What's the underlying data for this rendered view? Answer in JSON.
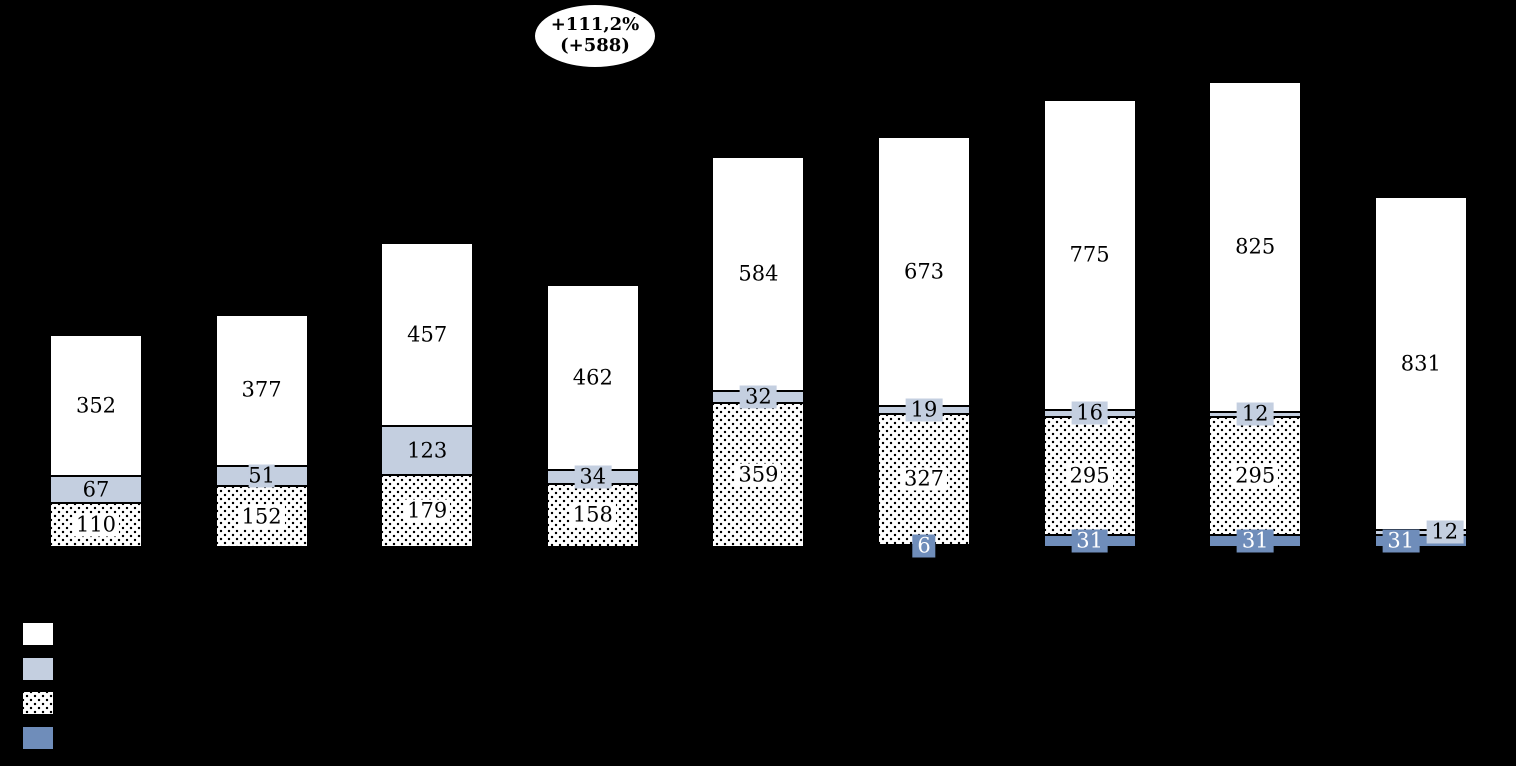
{
  "background_color": "#000000",
  "annotation": {
    "percent": "+111,2%",
    "absolute": "(+588)"
  },
  "chart_data": {
    "type": "bar",
    "stacked": true,
    "bar_count": 9,
    "x_tick_labels_visible": false,
    "axis_visible": false,
    "grid": false,
    "series": [
      {
        "key": "white",
        "style": "white",
        "values": [
          352,
          377,
          457,
          462,
          584,
          673,
          775,
          825,
          831
        ]
      },
      {
        "key": "light-blue",
        "style": "light",
        "values": [
          67,
          51,
          123,
          34,
          32,
          19,
          16,
          12,
          12
        ]
      },
      {
        "key": "dotted",
        "style": "dotted",
        "values": [
          110,
          152,
          179,
          158,
          359,
          327,
          295,
          295,
          0
        ]
      },
      {
        "key": "dark-blue",
        "style": "dark",
        "values": [
          0,
          0,
          0,
          0,
          0,
          6,
          31,
          31,
          31
        ]
      }
    ],
    "stack_order_bottom_to_top": [
      "dark-blue",
      "dotted",
      "light-blue",
      "white"
    ],
    "totals": [
      529,
      580,
      759,
      654,
      975,
      1025,
      1117,
      1163,
      874
    ],
    "colors": {
      "white": "#ffffff",
      "light": "#c4cfe0",
      "dark": "#6f8dba",
      "dot": "#000000",
      "outline": "#000000",
      "annotation_fill": "#ffffff"
    },
    "legend": {
      "position": "bottom-left",
      "labels_visible": false,
      "swatch_order": [
        "white",
        "light",
        "dotted",
        "dark"
      ]
    },
    "label_overlap_offsets": {
      "bar_index": 9,
      "light_dx": 24,
      "dark_dx": -20
    }
  }
}
